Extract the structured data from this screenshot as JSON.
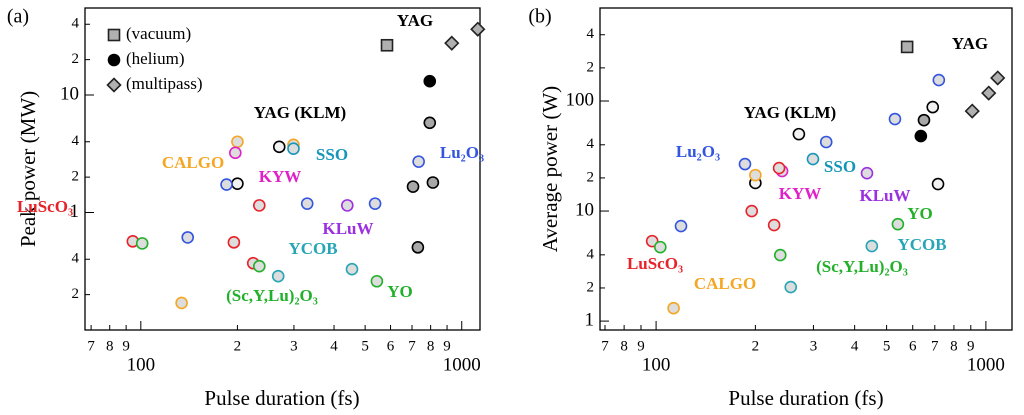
{
  "chart_data": [
    {
      "type": "scatter",
      "panel": "(a)",
      "xlabel": "Pulse duration (fs)",
      "ylabel": "Peak power (MW)",
      "log": true,
      "legend": "top-left",
      "xlim": [
        67,
        1140
      ],
      "ylim": [
        0.1,
        55
      ],
      "xticks": [
        {
          "value": 70,
          "label": "7"
        },
        {
          "value": 80,
          "label": "8"
        },
        {
          "value": 90,
          "label": "9"
        },
        100,
        {
          "value": 200,
          "label": "2"
        },
        {
          "value": 300,
          "label": "3"
        },
        {
          "value": 400,
          "label": "4"
        },
        {
          "value": 500,
          "label": "5"
        },
        {
          "value": 600,
          "label": "6"
        },
        {
          "value": 700,
          "label": "7"
        },
        {
          "value": 800,
          "label": "8"
        },
        {
          "value": 900,
          "label": "9"
        },
        1000
      ],
      "yticks": [
        {
          "value": 0.2,
          "label": "2"
        },
        {
          "value": 0.4,
          "label": "4"
        },
        1,
        {
          "value": 2,
          "label": "2"
        },
        {
          "value": 4,
          "label": "4"
        },
        10,
        {
          "value": 20,
          "label": "2"
        },
        {
          "value": 40,
          "label": "4"
        }
      ],
      "series": [
        {
          "name": "(vacuum)",
          "marker": "square",
          "color": "#222222",
          "fill": "#b0b0b0",
          "x": [
            585
          ],
          "values": [
            26.5
          ]
        },
        {
          "name": "(helium)",
          "marker": "circle",
          "color": "#000000",
          "fill": "#000000",
          "x": [
            795
          ],
          "values": [
            13.1
          ]
        },
        {
          "name": "(multipass)",
          "marker": "diamond",
          "color": "#222222",
          "fill": "#b0b0b0",
          "x": [
            931,
            1122
          ],
          "values": [
            27.6,
            36.3
          ]
        },
        {
          "name": "YAG",
          "marker": "circle",
          "color": "#000000",
          "fill": "#a8a8a8",
          "x": [
            795,
            705,
            813,
            730
          ],
          "values": [
            5.8,
            1.66,
            1.8,
            0.505
          ]
        },
        {
          "name": "YAG (KLM)",
          "marker": "circle",
          "color": "#000000",
          "fill": "#f2f2f2",
          "x": [
            200,
            270
          ],
          "values": [
            1.76,
            3.62
          ]
        },
        {
          "name": "CALGO",
          "marker": "circle",
          "color": "#f5a623",
          "fill": "#dddddd",
          "x": [
            200,
            299,
            134
          ],
          "values": [
            4.0,
            3.77,
            0.17
          ]
        },
        {
          "name": "KYW",
          "marker": "circle",
          "color": "#e020c8",
          "fill": "#dddddd",
          "x": [
            197
          ],
          "values": [
            3.22
          ]
        },
        {
          "name": "SSO",
          "marker": "circle",
          "color": "#1796b8",
          "fill": "#dddddd",
          "x": [
            299
          ],
          "values": [
            3.49
          ]
        },
        {
          "name": "Lu₂O₃",
          "marker": "circle",
          "color": "#3355e0",
          "fill": "#dddddd",
          "x": [
            185,
            140,
            734,
            330,
            537
          ],
          "values": [
            1.73,
            0.614,
            2.71,
            1.19,
            1.19
          ]
        },
        {
          "name": "LuScO₃",
          "marker": "circle",
          "color": "#e8222a",
          "fill": "#dddddd",
          "x": [
            94.4,
            195,
            234,
            224
          ],
          "values": [
            0.568,
            0.557,
            1.15,
            0.37
          ]
        },
        {
          "name": "KLuW",
          "marker": "circle",
          "color": "#9b30e0",
          "fill": "#dddddd",
          "x": [
            440
          ],
          "values": [
            1.15
          ]
        },
        {
          "name": "YCOB",
          "marker": "circle",
          "color": "#25a5b5",
          "fill": "#dddddd",
          "x": [
            268,
            455
          ],
          "values": [
            0.287,
            0.329
          ]
        },
        {
          "name": "(Sc,Y,Lu)₂O₃",
          "marker": "circle",
          "color": "#22b02a",
          "fill": "#dddddd",
          "x": [
            101,
            234
          ],
          "values": [
            0.546,
            0.349
          ]
        },
        {
          "name": "YO",
          "marker": "circle",
          "color": "#22b02a",
          "fill": "#dddddd",
          "x": [
            544
          ],
          "values": [
            0.26
          ]
        }
      ]
    },
    {
      "type": "scatter",
      "panel": "(b)",
      "xlabel": "Pulse duration (fs)",
      "ylabel": "Average power (W)",
      "log": true,
      "xlim": [
        67.6,
        1200
      ],
      "ylim": [
        0.83,
        700
      ],
      "xticks": [
        {
          "value": 70,
          "label": "7"
        },
        {
          "value": 80,
          "label": "8"
        },
        {
          "value": 90,
          "label": "9"
        },
        100,
        {
          "value": 200,
          "label": "2"
        },
        {
          "value": 300,
          "label": "3"
        },
        {
          "value": 400,
          "label": "4"
        },
        {
          "value": 500,
          "label": "5"
        },
        {
          "value": 600,
          "label": "6"
        },
        {
          "value": 700,
          "label": "7"
        },
        {
          "value": 800,
          "label": "8"
        },
        {
          "value": 900,
          "label": "9"
        },
        1000
      ],
      "yticks": [
        1,
        {
          "value": 2,
          "label": "2"
        },
        {
          "value": 4,
          "label": "4"
        },
        10,
        {
          "value": 20,
          "label": "2"
        },
        {
          "value": 40,
          "label": "4"
        },
        100,
        {
          "value": 200,
          "label": "2"
        },
        {
          "value": 400,
          "label": "4"
        }
      ],
      "series": [
        {
          "marker": "square",
          "color": "#222222",
          "fill": "#b0b0b0",
          "x": [
            577
          ],
          "values": [
            310
          ]
        },
        {
          "marker": "circle",
          "color": "#000000",
          "fill": "#000000",
          "x": [
            635
          ],
          "values": [
            48
          ]
        },
        {
          "marker": "diamond",
          "color": "#222222",
          "fill": "#b0b0b0",
          "x": [
            909,
            1020,
            1086
          ],
          "values": [
            81,
            118,
            162
          ]
        },
        {
          "name": "YAG",
          "marker": "circle",
          "color": "#000000",
          "fill": "#a8a8a8",
          "x": [
            649
          ],
          "values": [
            67
          ]
        },
        {
          "name": "YAG (KLM)",
          "marker": "circle",
          "color": "#000000",
          "fill": "#f2f2f2",
          "x": [
            200,
            271,
            690,
            716
          ],
          "values": [
            18,
            50,
            88,
            17.6
          ]
        },
        {
          "name": "CALGO",
          "marker": "circle",
          "color": "#f5a623",
          "fill": "#dddddd",
          "x": [
            200,
            113
          ],
          "values": [
            21.2,
            1.31
          ]
        },
        {
          "name": "KYW",
          "marker": "circle",
          "color": "#e020c8",
          "fill": "#dddddd",
          "x": [
            241
          ],
          "values": [
            23.1
          ]
        },
        {
          "name": "SSO",
          "marker": "circle",
          "color": "#1796b8",
          "fill": "#dddddd",
          "x": [
            299
          ],
          "values": [
            29.7
          ]
        },
        {
          "name": "Lu₂O₃",
          "marker": "circle",
          "color": "#3355e0",
          "fill": "#dddddd",
          "x": [
            186,
            119,
            720,
            530,
            328
          ],
          "values": [
            26.7,
            7.3,
            155,
            68.6,
            42.4
          ]
        },
        {
          "name": "LuScO₃",
          "marker": "circle",
          "color": "#e8222a",
          "fill": "#dddddd",
          "x": [
            97.3,
            195,
            228,
            236
          ],
          "values": [
            5.33,
            10,
            7.46,
            24.6
          ]
        },
        {
          "name": "KLuW",
          "marker": "circle",
          "color": "#9b30e0",
          "fill": "#dddddd",
          "x": [
            436
          ],
          "values": [
            22.1
          ]
        },
        {
          "name": "YCOB",
          "marker": "circle",
          "color": "#25a5b5",
          "fill": "#dddddd",
          "x": [
            451,
            256
          ],
          "values": [
            4.81,
            2.04
          ]
        },
        {
          "name": "(Sc,Y,Lu)₂O₃",
          "marker": "circle",
          "color": "#22b02a",
          "fill": "#dddddd",
          "x": [
            103,
            238
          ],
          "values": [
            4.7,
            3.98
          ]
        },
        {
          "name": "YO",
          "marker": "circle",
          "color": "#22b02a",
          "fill": "#dddddd",
          "x": [
            541
          ],
          "values": [
            7.6
          ]
        }
      ]
    }
  ]
}
